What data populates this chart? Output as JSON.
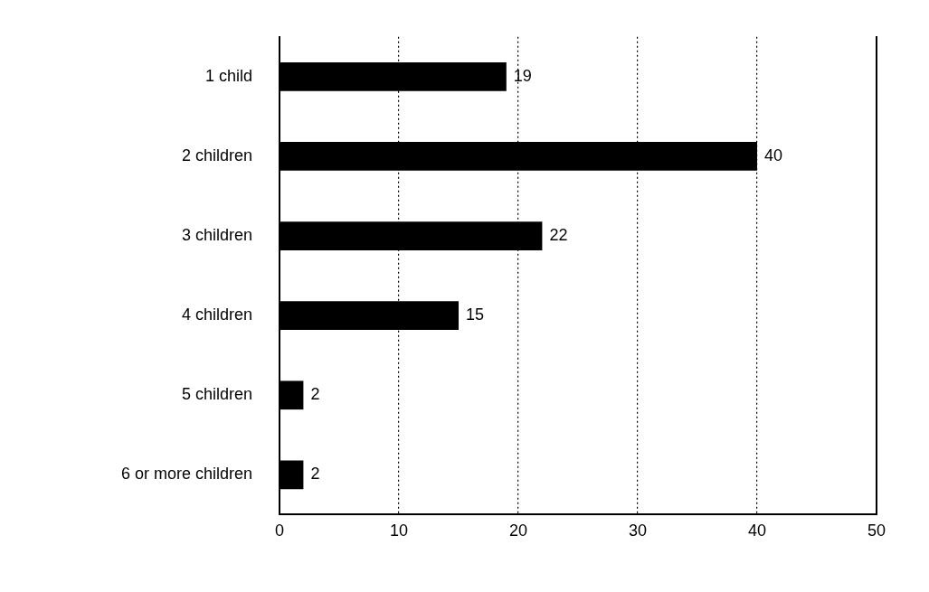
{
  "chart_data": {
    "type": "bar",
    "orientation": "horizontal",
    "categories": [
      "1 child",
      "2 children",
      "3 children",
      "4 children",
      "5 children",
      "6 or more children"
    ],
    "values": [
      19,
      40,
      22,
      15,
      2,
      2
    ],
    "color": "#000000",
    "xlim": [
      0,
      50
    ],
    "xticks": [
      0,
      10,
      20,
      30,
      40,
      50
    ],
    "grid": "x",
    "data_labels": true,
    "legend": false
  }
}
